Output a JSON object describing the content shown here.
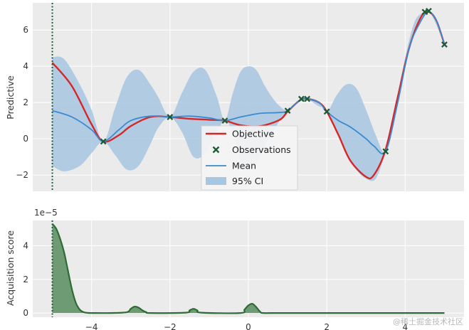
{
  "chart_data": [
    {
      "type": "line",
      "ylabel": "Predictive",
      "xlim": [
        -5.5,
        5.5
      ],
      "ylim": [
        -2.9,
        7.5
      ],
      "xticks": [
        -4,
        -2,
        0,
        2,
        4
      ],
      "yticks": [
        -2,
        0,
        2,
        4,
        6
      ],
      "grid": true,
      "legend_position": "lower-center",
      "query_x": -5,
      "series": [
        {
          "name": "Objective",
          "color": "#d62728",
          "x": [
            -5.0,
            -4.5,
            -4.0,
            -3.7,
            -3.3,
            -3.0,
            -2.5,
            -2.0,
            -1.5,
            -1.0,
            -0.6,
            -0.2,
            0.3,
            0.8,
            1.0,
            1.3,
            1.5,
            1.8,
            2.0,
            2.3,
            2.6,
            3.0,
            3.2,
            3.5,
            3.8,
            4.1,
            4.4,
            4.6,
            4.8,
            5.0
          ],
          "y": [
            4.2,
            2.9,
            0.8,
            -0.15,
            0.2,
            0.7,
            1.2,
            1.2,
            1.1,
            1.05,
            1.0,
            0.75,
            0.7,
            1.05,
            1.5,
            2.1,
            2.2,
            2.0,
            1.5,
            0.2,
            -1.2,
            -2.1,
            -2.0,
            -0.6,
            2.2,
            5.0,
            6.7,
            7.0,
            6.5,
            5.2
          ]
        },
        {
          "name": "Mean",
          "color": "#3a8ad1",
          "x": [
            -5.0,
            -4.5,
            -4.0,
            -3.7,
            -3.3,
            -3.0,
            -2.5,
            -2.0,
            -1.5,
            -1.0,
            -0.6,
            -0.2,
            0.3,
            0.8,
            1.0,
            1.3,
            1.5,
            1.8,
            2.0,
            2.3,
            2.6,
            3.0,
            3.2,
            3.5,
            3.8,
            4.1,
            4.4,
            4.6,
            4.8,
            5.0
          ],
          "y": [
            1.55,
            1.2,
            0.5,
            -0.15,
            0.5,
            1.0,
            1.25,
            1.2,
            1.25,
            1.15,
            1.0,
            1.2,
            1.4,
            1.45,
            1.55,
            2.1,
            2.2,
            2.0,
            1.5,
            1.0,
            0.65,
            0.0,
            -0.4,
            -0.7,
            1.9,
            5.0,
            6.5,
            7.0,
            6.5,
            5.2
          ]
        }
      ],
      "observations": {
        "name": "Observations",
        "color": "#1d5a36",
        "x": [
          -3.7,
          -2.0,
          -0.6,
          1.0,
          1.35,
          1.5,
          2.0,
          3.5,
          4.5,
          4.6,
          5.0
        ],
        "y": [
          -0.15,
          1.2,
          1.0,
          1.55,
          2.2,
          2.2,
          1.5,
          -0.7,
          7.0,
          7.05,
          5.2
        ]
      },
      "ci": {
        "name": "95% CI",
        "color": "#a7c6e0",
        "x": [
          -5.0,
          -4.7,
          -4.3,
          -4.0,
          -3.7,
          -3.4,
          -3.1,
          -2.8,
          -2.5,
          -2.3,
          -2.0,
          -1.7,
          -1.4,
          -1.1,
          -0.8,
          -0.6,
          -0.4,
          -0.2,
          0.0,
          0.2,
          0.4,
          0.6,
          0.8,
          1.0,
          1.2,
          1.35,
          1.5,
          1.75,
          2.0,
          2.25,
          2.5,
          2.75,
          3.0,
          3.25,
          3.5,
          3.75,
          4.0,
          4.25,
          4.5,
          4.6,
          4.75,
          5.0
        ],
        "lower": [
          -1.5,
          -1.8,
          -1.5,
          -0.8,
          -0.15,
          -0.9,
          -1.7,
          -1.5,
          -0.3,
          0.6,
          1.2,
          0.4,
          -1.0,
          -0.8,
          0.4,
          1.0,
          0.4,
          -1.2,
          -1.6,
          -1.4,
          -0.5,
          0.3,
          1.0,
          1.55,
          2.0,
          2.2,
          2.2,
          1.85,
          1.5,
          0.3,
          -0.7,
          -1.7,
          -2.2,
          -2.2,
          -0.7,
          1.6,
          4.2,
          6.0,
          7.0,
          7.05,
          6.5,
          5.2
        ],
        "upper": [
          4.5,
          4.4,
          3.0,
          1.6,
          -0.15,
          1.7,
          3.4,
          3.8,
          3.0,
          2.3,
          1.2,
          2.5,
          3.7,
          3.8,
          2.3,
          1.0,
          2.5,
          3.7,
          4.0,
          3.8,
          3.0,
          2.3,
          1.8,
          1.55,
          2.0,
          2.2,
          2.2,
          2.1,
          1.5,
          2.4,
          3.0,
          2.8,
          1.6,
          0.2,
          -0.7,
          1.8,
          4.5,
          6.5,
          7.0,
          7.05,
          6.6,
          5.2
        ]
      }
    },
    {
      "type": "area",
      "ylabel": "Acquisition score",
      "offset_label": "1e−5",
      "xlim": [
        -5.5,
        5.5
      ],
      "ylim": [
        -0.25,
        5.5
      ],
      "xticks": [
        -4,
        -2,
        0,
        2,
        4
      ],
      "yticks": [
        0,
        2,
        4
      ],
      "grid": true,
      "query_x": -5,
      "series": [
        {
          "name": "",
          "color": "#2e7d3a",
          "fill": "#6e9b73",
          "x": [
            -5.0,
            -4.9,
            -4.8,
            -4.7,
            -4.6,
            -4.5,
            -4.4,
            -4.3,
            -4.2,
            -4.1,
            -4.0,
            -3.5,
            -3.1,
            -3.0,
            -2.9,
            -2.8,
            -2.7,
            -2.6,
            -2.5,
            -1.6,
            -1.5,
            -1.4,
            -1.3,
            -1.2,
            -0.2,
            -0.1,
            0.0,
            0.1,
            0.2,
            0.3,
            0.4,
            1.0,
            5.0
          ],
          "y": [
            5.3,
            5.0,
            4.4,
            3.6,
            2.5,
            1.4,
            0.6,
            0.2,
            0.05,
            0.01,
            0.0,
            0.0,
            0.05,
            0.25,
            0.38,
            0.32,
            0.15,
            0.04,
            0.0,
            0.02,
            0.15,
            0.25,
            0.15,
            0.02,
            0.0,
            0.2,
            0.45,
            0.55,
            0.35,
            0.08,
            0.0,
            0.0,
            0.0
          ]
        }
      ]
    }
  ],
  "watermark": "@稀土掘金技术社区"
}
